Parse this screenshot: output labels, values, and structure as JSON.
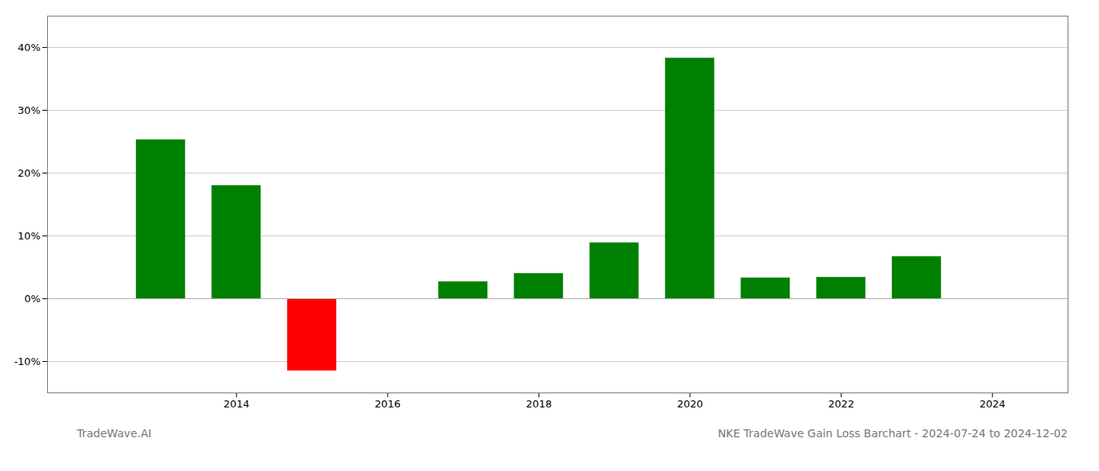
{
  "chart_data": {
    "type": "bar",
    "x": [
      2013,
      2014,
      2015,
      2017,
      2018,
      2019,
      2020,
      2021,
      2022,
      2023
    ],
    "values": [
      25.3,
      18.0,
      -11.5,
      2.7,
      4.0,
      8.9,
      38.3,
      3.3,
      3.4,
      6.7
    ],
    "colors": [
      "#008000",
      "#008000",
      "#ff0000",
      "#008000",
      "#008000",
      "#008000",
      "#008000",
      "#008000",
      "#008000",
      "#008000"
    ],
    "xlim": [
      2011.5,
      2025.0
    ],
    "xticks": [
      2014,
      2016,
      2018,
      2020,
      2022,
      2024
    ],
    "ylim": [
      -15,
      45
    ],
    "yticks": [
      {
        "value": -10,
        "label": "-10%"
      },
      {
        "value": 0,
        "label": "0%"
      },
      {
        "value": 10,
        "label": "10%"
      },
      {
        "value": 20,
        "label": "20%"
      },
      {
        "value": 30,
        "label": "30%"
      },
      {
        "value": 40,
        "label": "40%"
      }
    ],
    "grid": true,
    "annotations": [
      "TradeWave.AI",
      "NKE TradeWave Gain Loss Barchart - 2024-07-24 to 2024-12-02"
    ]
  }
}
